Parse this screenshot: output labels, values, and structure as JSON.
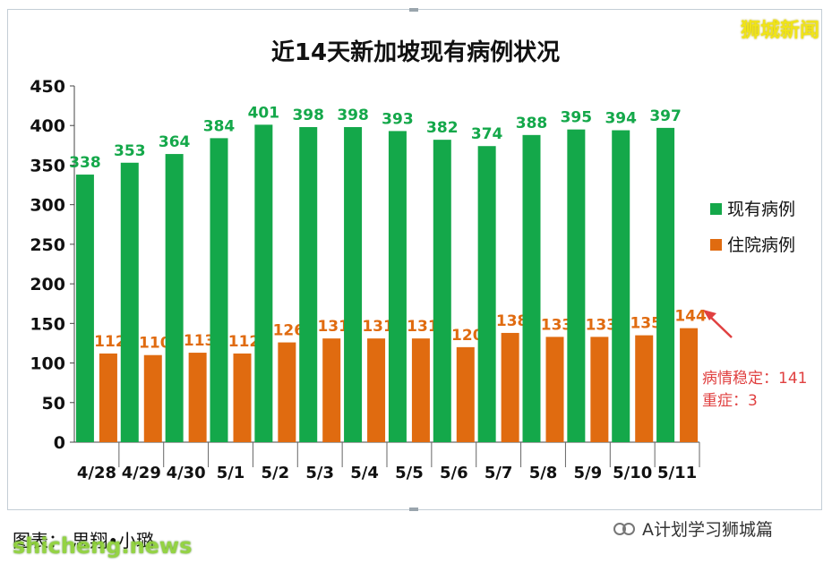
{
  "watermark": "狮城新闻",
  "caption": "图表：  思翔•小璐",
  "site": "shicheng.news",
  "wechat": {
    "label": "A计划学习狮城篇",
    "icon": "wechat-channel-icon"
  },
  "colors": {
    "current": "#14a84a",
    "hospital": "#e06b10",
    "note": "#e04040",
    "title": "#111111"
  },
  "note": {
    "line1": "病情稳定：141",
    "line2": "重症：3"
  },
  "chart_data": {
    "type": "bar",
    "title": "近14天新加坡现有病例状况",
    "categories": [
      "4/28",
      "4/29",
      "4/30",
      "5/1",
      "5/2",
      "5/3",
      "5/4",
      "5/5",
      "5/6",
      "5/7",
      "5/8",
      "5/9",
      "5/10",
      "5/11"
    ],
    "series": [
      {
        "name": "现有病例",
        "values": [
          338,
          353,
          364,
          384,
          401,
          398,
          398,
          393,
          382,
          374,
          388,
          395,
          394,
          397
        ]
      },
      {
        "name": "住院病例",
        "values": [
          112,
          110,
          113,
          112,
          126,
          131,
          131,
          131,
          120,
          138,
          133,
          133,
          135,
          144
        ]
      }
    ],
    "ylim": [
      0,
      450
    ],
    "yticks": [
      0,
      50,
      100,
      150,
      200,
      250,
      300,
      350,
      400,
      450
    ],
    "legend_position": "right",
    "grid": false
  }
}
